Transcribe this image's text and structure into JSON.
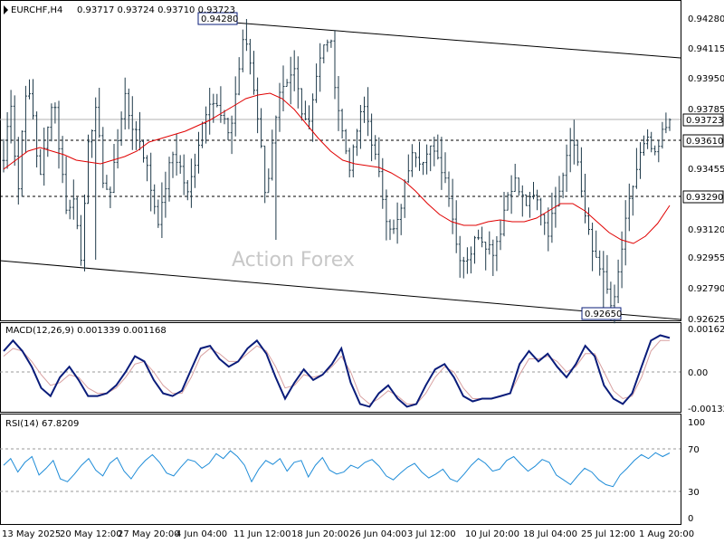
{
  "header": {
    "symbol": "EURCHF,H4",
    "ohlc": "0.93717 0.93724 0.93710 0.93723"
  },
  "watermark": "Action Forex",
  "price_levels": {
    "high_label": "0.94280",
    "low_label": "0.92650",
    "current": "0.93723",
    "resistance": "0.93610",
    "support": "0.93290"
  },
  "price_axis": {
    "ticks": [
      "0.94280",
      "0.94115",
      "0.93950",
      "0.93785",
      "0.93610",
      "0.93455",
      "0.93290",
      "0.93120",
      "0.92955",
      "0.92790",
      "0.92625"
    ]
  },
  "macd": {
    "title": "MACD(12,26,9) 0.001339 0.001168",
    "ticks": [
      "0.001625",
      "0.00",
      "-0.001321"
    ]
  },
  "rsi": {
    "title": "RSI(14) 67.8209",
    "ticks": [
      "100",
      "70",
      "30",
      "0"
    ]
  },
  "time_axis": {
    "labels": [
      "13 May 2025",
      "20 May 12:00",
      "27 May 20:00",
      "4 Jun 04:00",
      "11 Jun 12:00",
      "18 Jun 20:00",
      "26 Jun 04:00",
      "3 Jul 12:00",
      "10 Jul 20:00",
      "18 Jul 04:00",
      "25 Jul 12:00",
      "1 Aug 20:00"
    ]
  },
  "colors": {
    "bars": "#1f3a4a",
    "ma": "#e00000",
    "macd": "#0a1c7a",
    "signal": "#d8a0a0",
    "rsi": "#1e8cd8",
    "grid_dash": "#808080"
  },
  "chart_data": [
    {
      "type": "ohlc",
      "title": "EURCHF,H4",
      "y_range": [
        0.92625,
        0.943
      ],
      "horizontal_levels": [
        0.93723,
        0.9361,
        0.9329
      ],
      "marked_high": 0.9428,
      "marked_low": 0.9265,
      "channel": {
        "upper": [
          [
            0.0,
            0.9428
          ],
          [
            1.0,
            0.9408
          ]
        ],
        "lower": [
          [
            0.0,
            0.9295
          ],
          [
            1.0,
            0.92625
          ]
        ]
      },
      "close_path": [
        0.935,
        0.9385,
        0.933,
        0.939,
        0.938,
        0.934,
        0.936,
        0.939,
        0.935,
        0.932,
        0.933,
        0.9295,
        0.936,
        0.938,
        0.934,
        0.933,
        0.936,
        0.9385,
        0.937,
        0.9365,
        0.935,
        0.933,
        0.9315,
        0.934,
        0.9355,
        0.9345,
        0.933,
        0.935,
        0.937,
        0.9385,
        0.938,
        0.937,
        0.9365,
        0.9395,
        0.942,
        0.94,
        0.937,
        0.933,
        0.936,
        0.9385,
        0.939,
        0.94,
        0.938,
        0.937,
        0.9395,
        0.941,
        0.942,
        0.9385,
        0.936,
        0.9345,
        0.937,
        0.938,
        0.936,
        0.934,
        0.932,
        0.931,
        0.932,
        0.9345,
        0.9355,
        0.935,
        0.936,
        0.935,
        0.9345,
        0.933,
        0.93,
        0.9295,
        0.93,
        0.931,
        0.9305,
        0.93,
        0.931,
        0.933,
        0.934,
        0.933,
        0.9325,
        0.933,
        0.932,
        0.931,
        0.933,
        0.9345,
        0.9365,
        0.935,
        0.932,
        0.93,
        0.9295,
        0.928,
        0.9265,
        0.9295,
        0.932,
        0.934,
        0.9355,
        0.936,
        0.935,
        0.9365,
        0.93723
      ],
      "ma": [
        0.9345,
        0.935,
        0.9355,
        0.9357,
        0.9355,
        0.9353,
        0.935,
        0.9349,
        0.9348,
        0.935,
        0.9352,
        0.9355,
        0.936,
        0.9362,
        0.9364,
        0.9366,
        0.9369,
        0.9372,
        0.9376,
        0.938,
        0.9384,
        0.9386,
        0.9387,
        0.9384,
        0.9378,
        0.937,
        0.9362,
        0.9355,
        0.935,
        0.9348,
        0.9347,
        0.9346,
        0.9343,
        0.9339,
        0.9333,
        0.9326,
        0.932,
        0.9316,
        0.9314,
        0.9314,
        0.9316,
        0.9317,
        0.9316,
        0.9316,
        0.9318,
        0.9322,
        0.9326,
        0.9326,
        0.9322,
        0.9316,
        0.931,
        0.9306,
        0.9304,
        0.9308,
        0.9315,
        0.9325
      ]
    },
    {
      "type": "line",
      "title": "MACD(12,26,9) 0.001339 0.001168",
      "y_range": [
        -0.00145,
        0.00175
      ],
      "series": [
        {
          "name": "MACD",
          "values": [
            0.0008,
            0.0012,
            0.0008,
            0.0002,
            -0.0006,
            -0.0009,
            -0.0002,
            0.0002,
            -0.0003,
            -0.0009,
            -0.0009,
            -0.0008,
            -0.0005,
            0.0,
            0.0006,
            0.0004,
            -0.0003,
            -0.0008,
            -0.0009,
            -0.0007,
            0.0001,
            0.0009,
            0.001,
            0.0005,
            0.0002,
            0.0004,
            0.0009,
            0.0012,
            0.0007,
            -0.0002,
            -0.001,
            -0.0004,
            0.0001,
            -0.0003,
            -0.0001,
            0.0003,
            0.0009,
            -0.0004,
            -0.0012,
            -0.0013,
            -0.0008,
            -0.0005,
            -0.001,
            -0.0013,
            -0.0012,
            -0.0005,
            0.0001,
            0.0003,
            -0.0002,
            -0.0009,
            -0.0011,
            -0.001,
            -0.001,
            -0.0009,
            -0.0008,
            0.0003,
            0.0008,
            0.0004,
            0.0007,
            0.0002,
            -0.0002,
            0.0003,
            0.001,
            0.0006,
            -0.0005,
            -0.001,
            -0.0012,
            -0.0008,
            0.0002,
            0.0012,
            0.0014,
            0.0013
          ]
        },
        {
          "name": "Signal",
          "values": [
            0.0006,
            0.0009,
            0.0008,
            0.0004,
            -0.0001,
            -0.0005,
            -0.0004,
            -0.0001,
            -0.0002,
            -0.0006,
            -0.0008,
            -0.0008,
            -0.0006,
            -0.0002,
            0.0003,
            0.0004,
            0.0,
            -0.0005,
            -0.0008,
            -0.0008,
            -0.0002,
            0.0006,
            0.0009,
            0.0007,
            0.0004,
            0.0004,
            0.0007,
            0.001,
            0.0008,
            0.0002,
            -0.0006,
            -0.0005,
            -0.0001,
            -0.0002,
            -0.0001,
            0.0002,
            0.0006,
            0.0,
            -0.0009,
            -0.0012,
            -0.001,
            -0.0007,
            -0.0009,
            -0.0012,
            -0.0012,
            -0.0008,
            -0.0002,
            0.0002,
            0.0,
            -0.0006,
            -0.001,
            -0.001,
            -0.001,
            -0.0009,
            -0.0008,
            -0.0001,
            0.0005,
            0.0005,
            0.0006,
            0.0004,
            0.0,
            0.0002,
            0.0007,
            0.0007,
            0.0,
            -0.0007,
            -0.001,
            -0.0009,
            -0.0002,
            0.0008,
            0.0012,
            0.0012
          ]
        }
      ],
      "levels": [
        0.001625,
        0.0,
        -0.001321
      ]
    },
    {
      "type": "line",
      "title": "RSI(14) 67.8209",
      "y_range": [
        0,
        100
      ],
      "levels": [
        70,
        30
      ],
      "series": [
        {
          "name": "RSI(14)",
          "values": [
            55,
            62,
            48,
            58,
            64,
            45,
            52,
            60,
            41,
            38,
            46,
            55,
            62,
            50,
            44,
            57,
            63,
            49,
            41,
            52,
            60,
            66,
            58,
            47,
            44,
            53,
            61,
            59,
            52,
            57,
            67,
            62,
            70,
            64,
            55,
            38,
            51,
            60,
            56,
            62,
            49,
            58,
            60,
            43,
            55,
            63,
            50,
            46,
            48,
            55,
            52,
            58,
            61,
            54,
            44,
            40,
            47,
            53,
            57,
            48,
            42,
            46,
            51,
            41,
            38,
            46,
            55,
            62,
            57,
            49,
            51,
            60,
            64,
            56,
            49,
            54,
            61,
            58,
            45,
            40,
            35,
            44,
            52,
            48,
            40,
            35,
            33,
            45,
            52,
            60,
            66,
            62,
            68,
            64,
            67.8
          ]
        }
      ]
    }
  ]
}
